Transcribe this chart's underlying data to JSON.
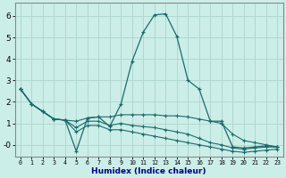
{
  "title": "",
  "xlabel": "Humidex (Indice chaleur)",
  "background_color": "#cceee8",
  "grid_color": "#b0d8d0",
  "line_color": "#1a6b6b",
  "xlim": [
    -0.5,
    23.5
  ],
  "ylim": [
    -0.55,
    6.6
  ],
  "x": [
    0,
    1,
    2,
    3,
    4,
    5,
    6,
    7,
    8,
    9,
    10,
    11,
    12,
    13,
    14,
    15,
    16,
    17,
    18,
    19,
    20,
    21,
    22,
    23
  ],
  "line1": [
    2.6,
    1.9,
    1.55,
    1.2,
    1.15,
    -0.3,
    1.25,
    1.3,
    0.85,
    1.9,
    3.9,
    5.25,
    6.05,
    6.1,
    5.05,
    3.0,
    2.6,
    1.1,
    1.1,
    -0.1,
    -0.15,
    -0.1,
    -0.05,
    -0.1
  ],
  "line2": [
    2.6,
    1.9,
    1.55,
    1.2,
    1.15,
    1.1,
    1.25,
    1.3,
    1.3,
    1.4,
    1.4,
    1.4,
    1.4,
    1.35,
    1.35,
    1.3,
    1.2,
    1.1,
    1.0,
    0.5,
    0.2,
    0.1,
    0.0,
    -0.1
  ],
  "line3": [
    2.6,
    1.9,
    1.55,
    1.2,
    1.15,
    0.8,
    1.1,
    1.1,
    0.9,
    1.0,
    0.9,
    0.85,
    0.8,
    0.7,
    0.6,
    0.5,
    0.3,
    0.1,
    0.0,
    -0.15,
    -0.2,
    -0.15,
    -0.1,
    -0.1
  ],
  "line4": [
    2.6,
    1.9,
    1.55,
    1.2,
    1.15,
    0.6,
    0.9,
    0.9,
    0.7,
    0.7,
    0.6,
    0.5,
    0.4,
    0.3,
    0.2,
    0.1,
    0.0,
    -0.1,
    -0.2,
    -0.3,
    -0.35,
    -0.3,
    -0.25,
    -0.2
  ],
  "yticks": [
    0,
    1,
    2,
    3,
    4,
    5,
    6
  ],
  "ytick_labels": [
    "-0",
    "1",
    "2",
    "3",
    "4",
    "5",
    "6"
  ],
  "xticks": [
    0,
    1,
    2,
    3,
    4,
    5,
    6,
    7,
    8,
    9,
    10,
    11,
    12,
    13,
    14,
    15,
    16,
    17,
    18,
    19,
    20,
    21,
    22,
    23
  ],
  "spine_color": "#888888"
}
